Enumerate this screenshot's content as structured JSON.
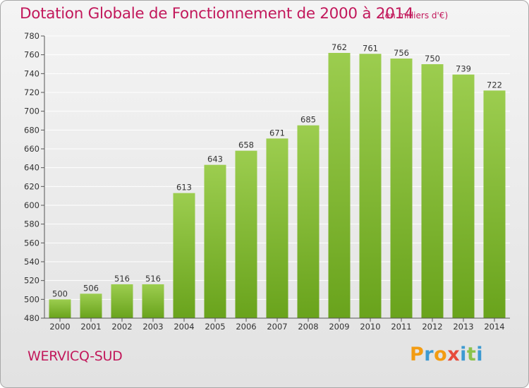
{
  "header": {
    "title": "Dotation Globale de Fonctionnement de 2000 à 2014",
    "subtitle": "(en milliers d'€)"
  },
  "footer": {
    "commune": "WERVICQ-SUD",
    "logo_letters": [
      "P",
      "r",
      "o",
      "x",
      "i",
      "t",
      "i"
    ],
    "logo_colors": [
      "#f39c12",
      "#3d9ad1",
      "#f39c12",
      "#e74c3c",
      "#3d9ad1",
      "#8bc34a",
      "#3d9ad1"
    ]
  },
  "colors": {
    "title": "#c2185b",
    "bar_top": "#9ccd4f",
    "bar_bottom": "#69a31c",
    "grid": "#ffffff",
    "axis": "#555555"
  },
  "chart_data": {
    "type": "bar",
    "categories": [
      "2000",
      "2001",
      "2002",
      "2003",
      "2004",
      "2005",
      "2006",
      "2007",
      "2008",
      "2009",
      "2010",
      "2011",
      "2012",
      "2013",
      "2014"
    ],
    "values": [
      500,
      506,
      516,
      516,
      613,
      643,
      658,
      671,
      685,
      762,
      761,
      756,
      750,
      739,
      722
    ],
    "data_labels": [
      "500",
      "506",
      "516",
      "516",
      "613",
      "643",
      "658",
      "671",
      "685",
      "762",
      "761",
      "756",
      "750",
      "739",
      "722"
    ],
    "ylim": [
      480,
      780
    ],
    "yticks": [
      480,
      500,
      520,
      540,
      560,
      580,
      600,
      620,
      640,
      660,
      680,
      700,
      720,
      740,
      760,
      780
    ],
    "ytick_labels": [
      "480",
      "500",
      "520",
      "540",
      "560",
      "580",
      "600",
      "620",
      "640",
      "660",
      "680",
      "700",
      "720",
      "740",
      "760",
      "780"
    ],
    "grid": true,
    "title": "Dotation Globale de Fonctionnement de 2000 à 2014",
    "xlabel": "",
    "ylabel": ""
  }
}
